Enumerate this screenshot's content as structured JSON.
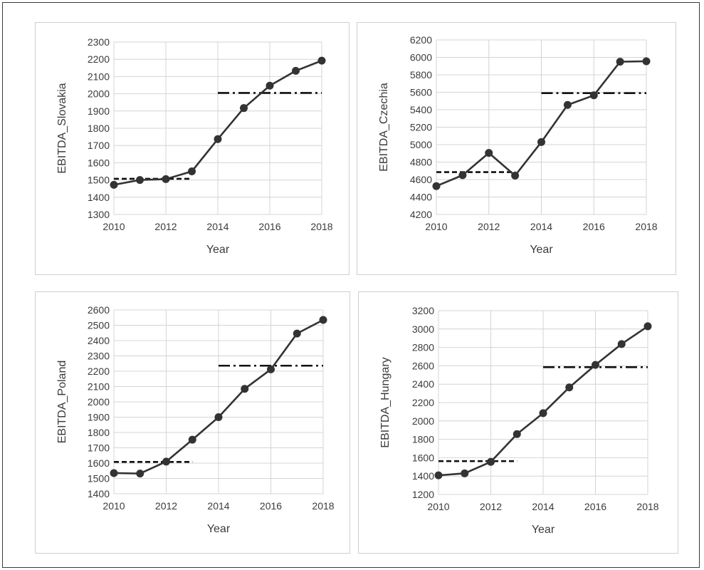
{
  "chart_data": [
    {
      "type": "line",
      "xlabel": "Year",
      "ylabel": "EBITDA_Slovakia",
      "xlim": [
        2010,
        2018
      ],
      "ylim": [
        1300,
        2300
      ],
      "xticks": [
        2010,
        2012,
        2014,
        2016,
        2018
      ],
      "yticks": [
        1300,
        1400,
        1500,
        1600,
        1700,
        1800,
        1900,
        2000,
        2100,
        2200,
        2300
      ],
      "grid": true,
      "series": [
        {
          "x": [
            2010,
            2011,
            2012,
            2013,
            2014,
            2015,
            2016,
            2017,
            2018
          ],
          "values": [
            1472,
            1500,
            1505,
            1550,
            1737,
            1917,
            2047,
            2133,
            2192
          ],
          "style": "solid-markers"
        }
      ],
      "reference_lines": [
        {
          "from": 2010,
          "to": 2013,
          "value": 1507,
          "style": "dashed"
        },
        {
          "from": 2014,
          "to": 2018,
          "value": 2005,
          "style": "dash-dot"
        }
      ]
    },
    {
      "type": "line",
      "xlabel": "Year",
      "ylabel": "EBITDA_Czechia",
      "xlim": [
        2010,
        2018
      ],
      "ylim": [
        4200,
        6200
      ],
      "xticks": [
        2010,
        2012,
        2014,
        2016,
        2018
      ],
      "yticks": [
        4200,
        4400,
        4600,
        4800,
        5000,
        5200,
        5400,
        5600,
        5800,
        6000,
        6200
      ],
      "grid": true,
      "series": [
        {
          "x": [
            2010,
            2011,
            2012,
            2013,
            2014,
            2015,
            2016,
            2017,
            2018
          ],
          "values": [
            4525,
            4650,
            4905,
            4645,
            5030,
            5455,
            5565,
            5950,
            5955
          ],
          "style": "solid-markers"
        }
      ],
      "reference_lines": [
        {
          "from": 2010,
          "to": 2013,
          "value": 4685,
          "style": "dashed"
        },
        {
          "from": 2014,
          "to": 2018,
          "value": 5590,
          "style": "dash-dot"
        }
      ]
    },
    {
      "type": "line",
      "xlabel": "Year",
      "ylabel": "EBITDA_Poland",
      "xlim": [
        2010,
        2018
      ],
      "ylim": [
        1400,
        2600
      ],
      "xticks": [
        2010,
        2012,
        2014,
        2016,
        2018
      ],
      "yticks": [
        1400,
        1500,
        1600,
        1700,
        1800,
        1900,
        2000,
        2100,
        2200,
        2300,
        2400,
        2500,
        2600
      ],
      "grid": true,
      "series": [
        {
          "x": [
            2010,
            2011,
            2012,
            2013,
            2014,
            2015,
            2016,
            2017,
            2018
          ],
          "values": [
            1535,
            1532,
            1610,
            1753,
            1900,
            2085,
            2212,
            2446,
            2535
          ],
          "style": "solid-markers"
        }
      ],
      "reference_lines": [
        {
          "from": 2010,
          "to": 2013,
          "value": 1608,
          "style": "dashed"
        },
        {
          "from": 2014,
          "to": 2018,
          "value": 2236,
          "style": "dash-dot"
        }
      ]
    },
    {
      "type": "line",
      "xlabel": "Year",
      "ylabel": "EBITDA_Hungary",
      "xlim": [
        2010,
        2018
      ],
      "ylim": [
        1200,
        3200
      ],
      "xticks": [
        2010,
        2012,
        2014,
        2016,
        2018
      ],
      "yticks": [
        1200,
        1400,
        1600,
        1800,
        2000,
        2200,
        2400,
        2600,
        2800,
        3000,
        3200
      ],
      "grid": true,
      "series": [
        {
          "x": [
            2010,
            2011,
            2012,
            2013,
            2014,
            2015,
            2016,
            2017,
            2018
          ],
          "values": [
            1408,
            1430,
            1555,
            1857,
            2085,
            2365,
            2610,
            2837,
            3030
          ],
          "style": "solid-markers"
        }
      ],
      "reference_lines": [
        {
          "from": 2010,
          "to": 2013,
          "value": 1563,
          "style": "dashed"
        },
        {
          "from": 2014,
          "to": 2018,
          "value": 2585,
          "style": "dash-dot"
        }
      ]
    }
  ],
  "colors": {
    "line": "#333333",
    "grid": "#d4d4d4",
    "text": "#3b3b3b",
    "panel_border": "#cfcfcf"
  }
}
